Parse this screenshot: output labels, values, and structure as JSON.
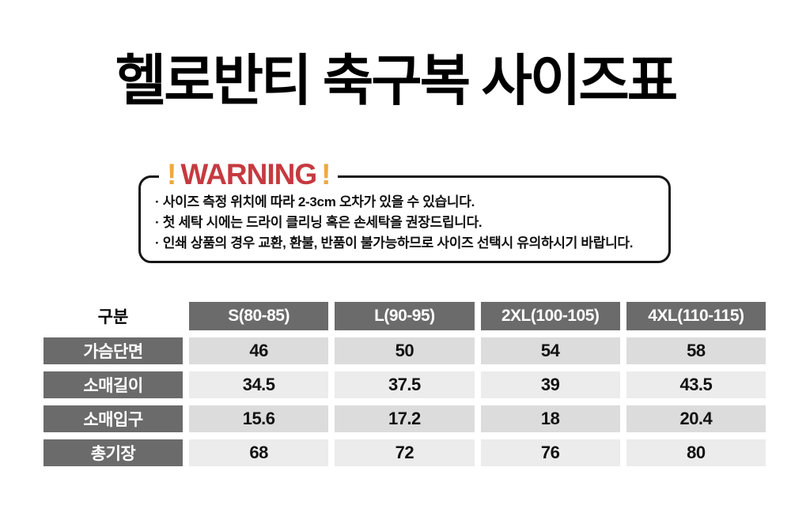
{
  "page": {
    "title": "헬로반티 축구복 사이즈표"
  },
  "warning": {
    "exclaim_left": "!",
    "label": "WARNING",
    "exclaim_right": "!",
    "notes": [
      "· 사이즈 측정 위치에 따라 2-3cm 오차가 있을 수 있습니다.",
      "· 첫 세탁 시에는 드라이 클리닝 혹은 손세탁을 권장드립니다.",
      "· 인쇄 상품의 경우 교환, 환불, 반품이 불가능하므로 사이즈 선택시 유의하시기 바랍니다."
    ]
  },
  "size_table": {
    "corner_label": "구분",
    "columns": [
      "S(80-85)",
      "L(90-95)",
      "2XL(100-105)",
      "4XL(110-115)"
    ],
    "rows": [
      {
        "label": "가슴단면",
        "values": [
          "46",
          "50",
          "54",
          "58"
        ]
      },
      {
        "label": "소매길이",
        "values": [
          "34.5",
          "37.5",
          "39",
          "43.5"
        ]
      },
      {
        "label": "소매입구",
        "values": [
          "15.6",
          "17.2",
          "18",
          "20.4"
        ]
      },
      {
        "label": "총기장",
        "values": [
          "68",
          "72",
          "76",
          "80"
        ]
      }
    ]
  },
  "colors": {
    "warning_red": "#c53a40",
    "warning_yellow": "#edaa3d",
    "header_gray": "#6b6b6b",
    "row_shade_dark": "#dcdcdc",
    "row_shade_light": "#ececec"
  }
}
